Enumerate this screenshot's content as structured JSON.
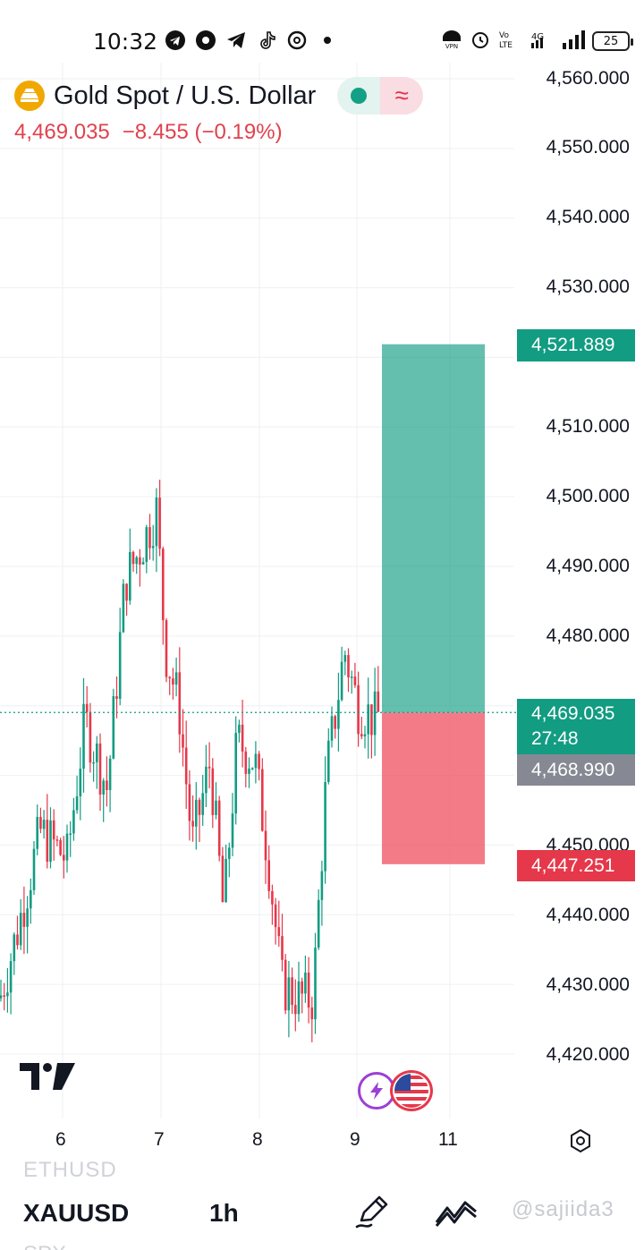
{
  "status_bar": {
    "time": "10:32",
    "app_icons": [
      "telegram-icon",
      "music-icon",
      "telegram-icon",
      "tiktok-icon",
      "threads-icon",
      "dot-icon"
    ],
    "network": "4G",
    "battery": "25"
  },
  "header": {
    "title": "Gold Spot / U.S. Dollar",
    "price": "4,469.035",
    "change": "−8.455 (−0.19%)",
    "colors": {
      "down": "#e0424d",
      "up": "#129c82",
      "logo": "#f0a800"
    }
  },
  "price_axis": {
    "labels": [
      "4,560.000",
      "4,550.000",
      "4,540.000",
      "4,530.000",
      "4,510.000",
      "4,500.000",
      "4,490.000",
      "4,480.000",
      "4,450.000",
      "4,440.000",
      "4,430.000",
      "4,420.000"
    ],
    "take_profit": "4,521.889",
    "last_price": "4,469.035",
    "countdown": "27:48",
    "prev_close": "4,468.990",
    "stop_loss": "4,447.251"
  },
  "time_axis": {
    "labels": [
      "6",
      "7",
      "8",
      "9",
      "11"
    ]
  },
  "position": {
    "entry": 4469.035,
    "target": 4521.889,
    "stop": 4447.251
  },
  "toolbar": {
    "prev_symbol": "ETHUSD",
    "symbol": "XAUUSD",
    "interval": "1h",
    "next_symbol": "SPX",
    "watermark": "@sajiida3"
  }
}
